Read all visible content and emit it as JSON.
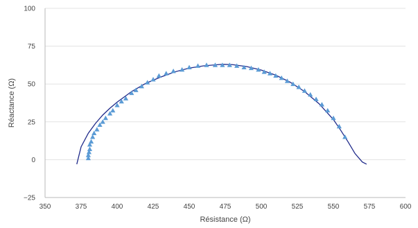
{
  "chart_data": {
    "type": "scatter",
    "xlabel": "Résistance (Ω)",
    "ylabel": "Réactance (Ω)",
    "xlim": [
      350,
      600
    ],
    "ylim": [
      -25,
      100
    ],
    "x_ticks": [
      350,
      375,
      400,
      425,
      450,
      475,
      500,
      525,
      550,
      575,
      600
    ],
    "y_ticks": [
      -25,
      0,
      25,
      50,
      75,
      100
    ],
    "grid": "horizontal",
    "legend": "none",
    "series": [
      {
        "kind": "scatter",
        "marker": "triangle",
        "color": "#5b9bd5",
        "x": [
          380,
          380,
          380.5,
          381,
          381,
          382,
          383,
          384,
          386,
          388,
          390,
          392,
          395,
          397,
          400,
          403,
          406,
          410,
          413,
          417,
          421,
          425,
          429,
          434,
          439,
          445,
          450,
          456,
          462,
          468,
          473,
          478,
          483,
          488,
          493,
          498,
          502,
          506,
          510,
          514,
          518,
          522,
          526,
          530,
          534,
          538,
          542,
          546,
          550,
          554,
          558
        ],
        "y": [
          1,
          3,
          5,
          7,
          10,
          12,
          15,
          17.5,
          20,
          23,
          25,
          27.5,
          30.5,
          32.5,
          36,
          38.5,
          40.5,
          44,
          46,
          48.5,
          51,
          53,
          55.5,
          57,
          58.5,
          59.5,
          61,
          62,
          62.5,
          62.5,
          62.5,
          62.5,
          62,
          61,
          60.5,
          59.5,
          58,
          57,
          55.5,
          54,
          52,
          50,
          48,
          45.5,
          43,
          40,
          36.5,
          32.5,
          27.5,
          22,
          15
        ]
      },
      {
        "kind": "line",
        "color": "#1f2a8a",
        "x": [
          372,
          375,
          380,
          385,
          390,
          395,
          400,
          410,
          420,
          430,
          440,
          450,
          460,
          470,
          473,
          480,
          490,
          500,
          510,
          520,
          530,
          540,
          550,
          555,
          560,
          565,
          570,
          573
        ],
        "y": [
          -3,
          8.5,
          17.5,
          24,
          29.5,
          34,
          38,
          45,
          50.5,
          54.5,
          58,
          60.5,
          62,
          62.8,
          63,
          62.8,
          61.5,
          59.2,
          55.8,
          51.2,
          45,
          37,
          26.5,
          19.5,
          12,
          4,
          -1.5,
          -3
        ]
      }
    ]
  }
}
